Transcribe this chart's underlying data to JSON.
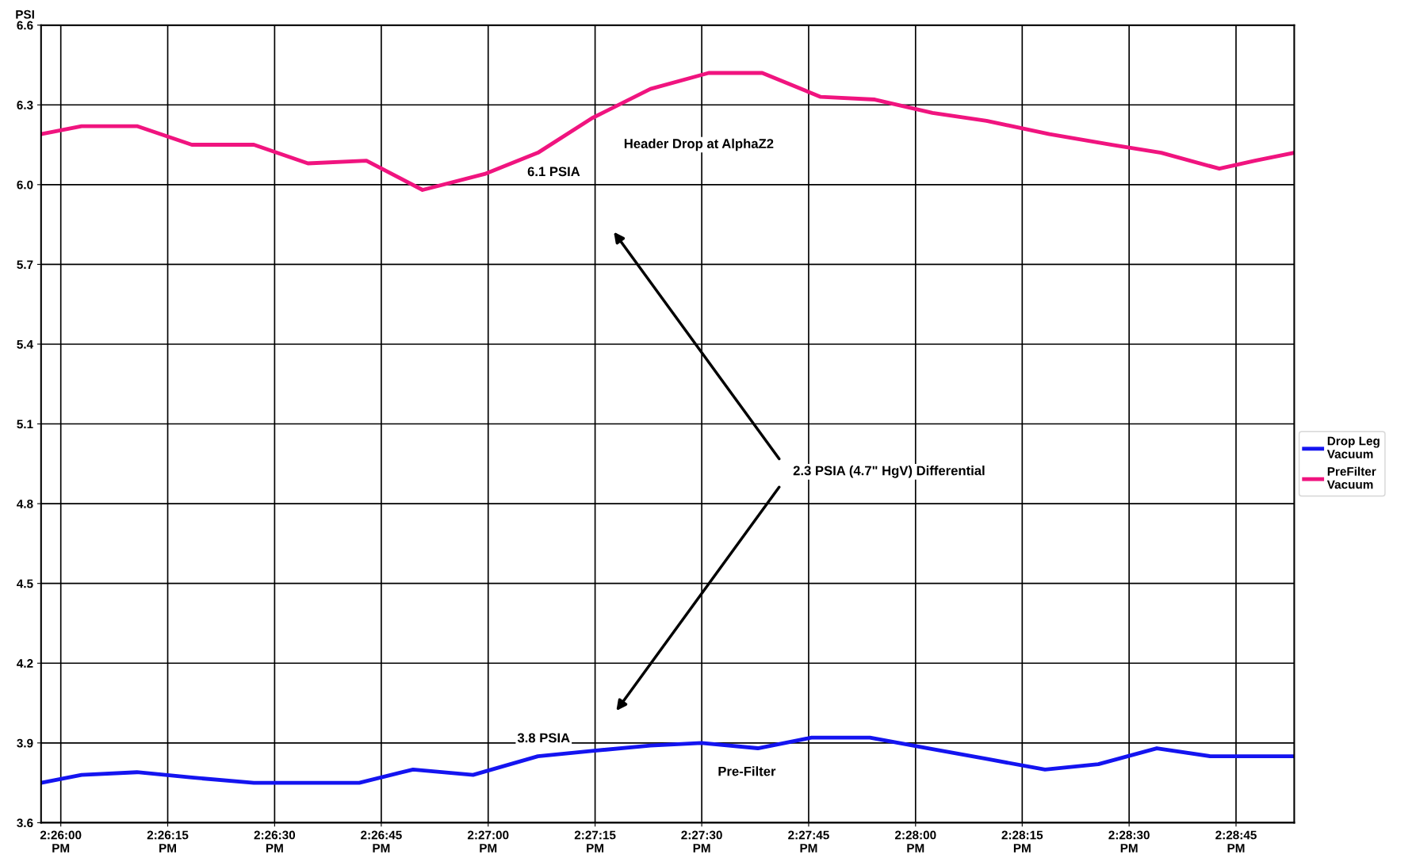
{
  "chart_data": {
    "type": "line",
    "ylabel": "PSI",
    "xlim": [
      14.43256,
      14.48144
    ],
    "ylim": [
      3.6,
      6.6
    ],
    "xticks": [
      {
        "value": 14.43333,
        "label": "2:26:00\nPM"
      },
      {
        "value": 14.4375,
        "label": "2:26:15\nPM"
      },
      {
        "value": 14.44167,
        "label": "2:26:30\nPM"
      },
      {
        "value": 14.44583,
        "label": "2:26:45\nPM"
      },
      {
        "value": 14.45,
        "label": "2:27:00\nPM"
      },
      {
        "value": 14.45417,
        "label": "2:27:15\nPM"
      },
      {
        "value": 14.45833,
        "label": "2:27:30\nPM"
      },
      {
        "value": 14.4625,
        "label": "2:27:45\nPM"
      },
      {
        "value": 14.46667,
        "label": "2:28:00\nPM"
      },
      {
        "value": 14.47083,
        "label": "2:28:15\nPM"
      },
      {
        "value": 14.475,
        "label": "2:28:30\nPM"
      },
      {
        "value": 14.47917,
        "label": "2:28:45\nPM"
      }
    ],
    "yticks": [
      {
        "value": 3.6,
        "label": "3.6"
      },
      {
        "value": 3.9,
        "label": "3.9"
      },
      {
        "value": 4.2,
        "label": "4.2"
      },
      {
        "value": 4.5,
        "label": "4.5"
      },
      {
        "value": 4.8,
        "label": "4.8"
      },
      {
        "value": 5.1,
        "label": "5.1"
      },
      {
        "value": 5.4,
        "label": "5.4"
      },
      {
        "value": 5.7,
        "label": "5.7"
      },
      {
        "value": 6.0,
        "label": "6.0"
      },
      {
        "value": 6.3,
        "label": "6.3"
      },
      {
        "value": 6.6,
        "label": "6.6"
      }
    ],
    "grid": true,
    "legend": "right",
    "marker": "none",
    "line_style": "solid",
    "series": [
      {
        "name": "Drop Leg\nVacuum",
        "color": "#1414f0",
        "x": [
          14.43256,
          14.43414,
          14.4363,
          14.43844,
          14.44086,
          14.44297,
          14.44497,
          14.44707,
          14.44941,
          14.45194,
          14.45405,
          14.45633,
          14.45832,
          14.46052,
          14.46261,
          14.46489,
          14.46716,
          14.46944,
          14.47172,
          14.4738,
          14.47608,
          14.47816,
          14.48144
        ],
        "values": [
          3.75,
          3.78,
          3.79,
          3.77,
          3.75,
          3.75,
          3.75,
          3.8,
          3.78,
          3.85,
          3.87,
          3.89,
          3.9,
          3.88,
          3.92,
          3.92,
          3.88,
          3.84,
          3.8,
          3.82,
          3.88,
          3.85,
          3.85
        ]
      },
      {
        "name": "PreFilter\nVacuum",
        "color": "#f0147f",
        "x": [
          14.43256,
          14.43414,
          14.4363,
          14.43844,
          14.44086,
          14.44297,
          14.44525,
          14.44744,
          14.44986,
          14.45194,
          14.45405,
          14.45633,
          14.4586,
          14.46069,
          14.46297,
          14.46508,
          14.46733,
          14.46944,
          14.47189,
          14.47433,
          14.47625,
          14.47852,
          14.47991,
          14.48144
        ],
        "values": [
          6.19,
          6.22,
          6.22,
          6.15,
          6.15,
          6.08,
          6.09,
          5.98,
          6.04,
          6.12,
          6.25,
          6.36,
          6.42,
          6.42,
          6.33,
          6.32,
          6.27,
          6.24,
          6.19,
          6.15,
          6.12,
          6.06,
          6.09,
          6.12
        ]
      }
    ],
    "annotations": [
      "Header Drop at AlphaZ2",
      "6.1 PSIA",
      "2.3 PSIA (4.7\" HgV) Differential",
      "3.8 PSIA",
      "Pre-Filter"
    ]
  }
}
